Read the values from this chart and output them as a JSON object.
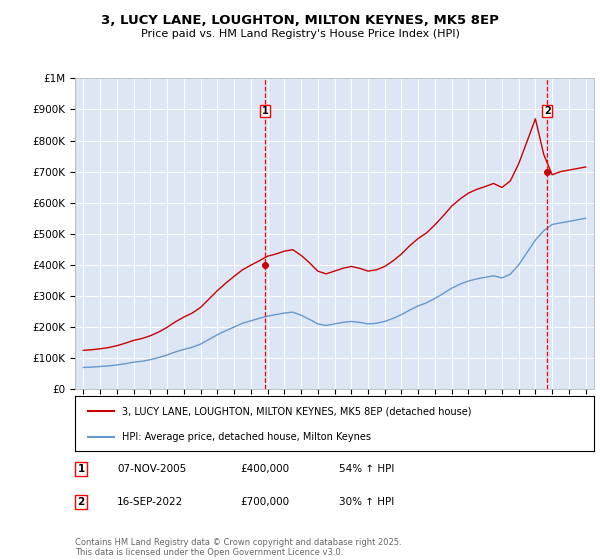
{
  "title": "3, LUCY LANE, LOUGHTON, MILTON KEYNES, MK5 8EP",
  "subtitle": "Price paid vs. HM Land Registry's House Price Index (HPI)",
  "background_color": "#dce6f5",
  "plot_bg_color": "#dce6f5",
  "ylim": [
    0,
    1000000
  ],
  "yticks": [
    0,
    100000,
    200000,
    300000,
    400000,
    500000,
    600000,
    700000,
    800000,
    900000,
    1000000
  ],
  "ytick_labels": [
    "£0",
    "£100K",
    "£200K",
    "£300K",
    "£400K",
    "£500K",
    "£600K",
    "£700K",
    "£800K",
    "£900K",
    "£1M"
  ],
  "sale1_date": 2005.85,
  "sale1_price": 400000,
  "sale1_label": "1",
  "sale2_date": 2022.71,
  "sale2_price": 700000,
  "sale2_label": "2",
  "red_line_color": "#cc0000",
  "blue_line_color": "#6699cc",
  "legend_label_red": "3, LUCY LANE, LOUGHTON, MILTON KEYNES, MK5 8EP (detached house)",
  "legend_label_blue": "HPI: Average price, detached house, Milton Keynes",
  "footer": "Contains HM Land Registry data © Crown copyright and database right 2025.\nThis data is licensed under the Open Government Licence v3.0.",
  "hpi_years": [
    1995,
    1995.5,
    1996,
    1996.5,
    1997,
    1997.5,
    1998,
    1998.5,
    1999,
    1999.5,
    2000,
    2000.5,
    2001,
    2001.5,
    2002,
    2002.5,
    2003,
    2003.5,
    2004,
    2004.5,
    2005,
    2005.5,
    2006,
    2006.5,
    2007,
    2007.5,
    2008,
    2008.5,
    2009,
    2009.5,
    2010,
    2010.5,
    2011,
    2011.5,
    2012,
    2012.5,
    2013,
    2013.5,
    2014,
    2014.5,
    2015,
    2015.5,
    2016,
    2016.5,
    2017,
    2017.5,
    2018,
    2018.5,
    2019,
    2019.5,
    2020,
    2020.5,
    2021,
    2021.5,
    2022,
    2022.5,
    2023,
    2023.5,
    2024,
    2024.5,
    2025
  ],
  "hpi_values": [
    70000,
    71000,
    73000,
    75000,
    78000,
    82000,
    87000,
    90000,
    95000,
    102000,
    110000,
    120000,
    128000,
    135000,
    145000,
    160000,
    175000,
    188000,
    200000,
    212000,
    220000,
    228000,
    235000,
    240000,
    245000,
    248000,
    238000,
    225000,
    210000,
    205000,
    210000,
    215000,
    218000,
    215000,
    210000,
    212000,
    218000,
    228000,
    240000,
    255000,
    268000,
    278000,
    292000,
    308000,
    325000,
    338000,
    348000,
    355000,
    360000,
    365000,
    358000,
    370000,
    400000,
    440000,
    480000,
    510000,
    530000,
    535000,
    540000,
    545000,
    550000
  ],
  "red_years": [
    1995,
    1995.5,
    1996,
    1996.5,
    1997,
    1997.5,
    1998,
    1998.5,
    1999,
    1999.5,
    2000,
    2000.5,
    2001,
    2001.5,
    2002,
    2002.5,
    2003,
    2003.5,
    2004,
    2004.5,
    2005,
    2005.5,
    2006,
    2006.5,
    2007,
    2007.5,
    2008,
    2008.5,
    2009,
    2009.5,
    2010,
    2010.5,
    2011,
    2011.5,
    2012,
    2012.5,
    2013,
    2013.5,
    2014,
    2014.5,
    2015,
    2015.5,
    2016,
    2016.5,
    2017,
    2017.5,
    2018,
    2018.5,
    2019,
    2019.5,
    2020,
    2020.5,
    2021,
    2021.5,
    2022,
    2022.5,
    2023,
    2023.5,
    2024,
    2024.5,
    2025
  ],
  "red_values": [
    125000,
    127000,
    130000,
    134000,
    140000,
    148000,
    157000,
    163000,
    172000,
    184000,
    199000,
    217000,
    232000,
    245000,
    263000,
    290000,
    317000,
    341000,
    363000,
    384000,
    399000,
    413000,
    428000,
    435000,
    444000,
    449000,
    431000,
    407000,
    380000,
    371000,
    380000,
    389000,
    395000,
    389000,
    380000,
    384000,
    395000,
    413000,
    435000,
    462000,
    485000,
    503000,
    529000,
    558000,
    589000,
    612000,
    631000,
    643000,
    652000,
    662000,
    649000,
    670000,
    725000,
    797000,
    870000,
    755000,
    690000,
    700000,
    705000,
    710000,
    715000
  ]
}
